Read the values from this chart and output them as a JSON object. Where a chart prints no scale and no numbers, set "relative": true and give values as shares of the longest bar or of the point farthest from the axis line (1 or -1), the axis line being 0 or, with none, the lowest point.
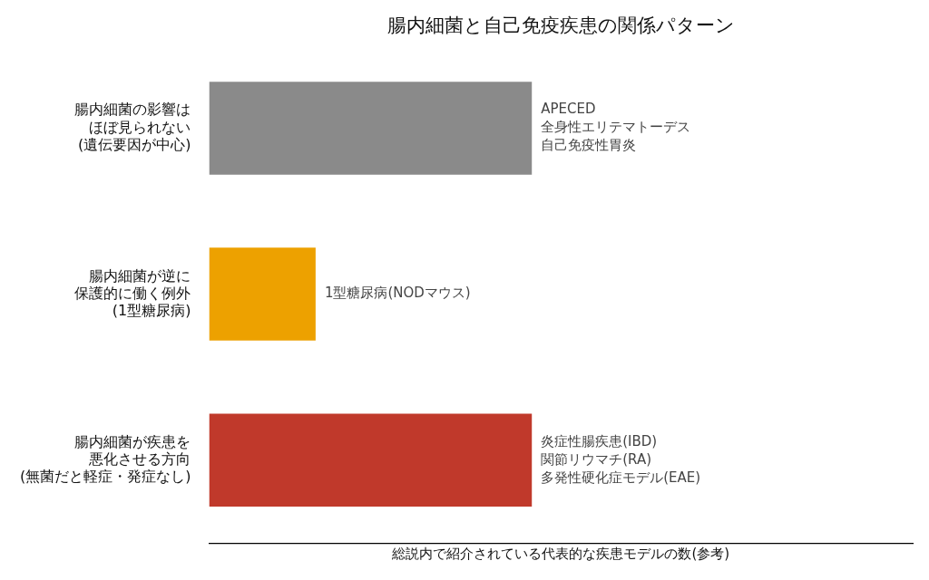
{
  "chart_data": {
    "type": "bar",
    "orientation": "horizontal",
    "relative": true,
    "title": "腸内細菌と自己免疫疾患の関係パターン",
    "xlabel": "総説内で紹介されている代表的な疾患モデルの数(参考)",
    "categories": [
      "腸内細菌の影響はほぼ見られない(遺伝要因が中心)",
      "腸内細菌が逆に保護的に働く例外(1型糖尿病)",
      "腸内細菌が疾患を悪化させる方向(無菌だと軽症・発症なし)"
    ],
    "values": [
      1,
      0.33,
      1
    ],
    "colors": [
      "#8a8a8a",
      "#eda100",
      "#c0392b"
    ],
    "annotations": [
      "APECED",
      "全身性エリテマトーデス",
      "自己免疫性胃炎",
      "1型糖尿病(NODマウス)",
      "炎症性腸疾患(IBD)",
      "関節リウマチ(RA)",
      "多発性硬化症モデル(EAE)"
    ],
    "grid": false,
    "legend": false
  }
}
